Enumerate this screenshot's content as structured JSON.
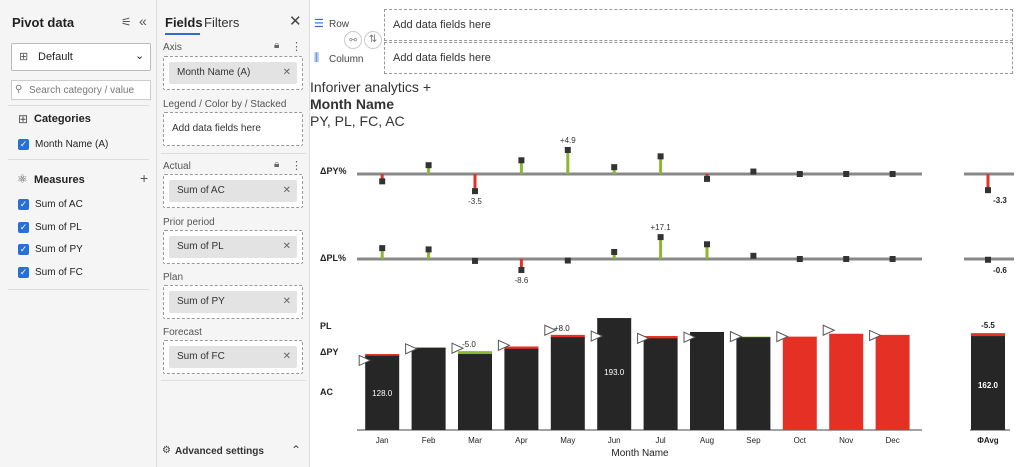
{
  "pivot": {
    "title": "Pivot data",
    "view_select": "Default",
    "search_placeholder": "Search category / value",
    "categories_title": "Categories",
    "categories": [
      "Month Name (A)"
    ],
    "measures_title": "Measures",
    "measures": [
      "Sum of AC",
      "Sum of PL",
      "Sum of PY",
      "Sum of FC"
    ]
  },
  "fields": {
    "tab_fields": "Fields",
    "tab_filters": "Filters",
    "axis_label": "Axis",
    "axis_chip": "Month Name (A)",
    "legend_label": "Legend / Color by / Stacked",
    "legend_placeholder": "Add data fields here",
    "actual_label": "Actual",
    "actual_chip": "Sum of AC",
    "prior_label": "Prior period",
    "prior_chip": "Sum of PL",
    "plan_label": "Plan",
    "plan_chip": "Sum of PY",
    "forecast_label": "Forecast",
    "forecast_chip": "Sum of FC",
    "advanced": "Advanced settings"
  },
  "toolbar": {
    "row_label": "Row",
    "row_placeholder": "Add data fields here",
    "column_label": "Column",
    "column_placeholder": "Add data fields here"
  },
  "caption": {
    "line1": "Inforiver analytics +",
    "line2": "Month Name",
    "line3": "PY, PL, FC, AC"
  },
  "chart_data": {
    "type": "bar",
    "categories": [
      "Jan",
      "Feb",
      "Mar",
      "Apr",
      "May",
      "Jun",
      "Jul",
      "Aug",
      "Sep",
      "Oct",
      "Nov",
      "Dec"
    ],
    "avg_label": "ΦAvg",
    "xlabel": "Month Name",
    "row_labels": [
      "ΔPY%",
      "ΔPL%",
      "PL",
      "ΔPY",
      "AC"
    ],
    "actual": [
      128,
      142,
      136,
      140,
      160,
      193,
      158,
      169,
      161,
      161,
      166,
      164
    ],
    "forecast_months": [
      "Oct",
      "Nov",
      "Dec"
    ],
    "prior_period": [
      131,
      142,
      131,
      144,
      164,
      193,
      162,
      169,
      160,
      158,
      159,
      160
    ],
    "plan_markers": [
      120,
      140,
      141,
      146,
      172,
      162,
      158,
      160,
      161,
      161,
      172,
      163
    ],
    "delta_py_labels": {
      "Mar": "-5.0",
      "May": "+8.0"
    },
    "inner_labels": {
      "Jan": "128.0",
      "Jun": "193.0"
    },
    "avg_value": 162,
    "avg_value_label": "162.0",
    "avg_delta_py_label": "-5.5",
    "delta_py_pct": [
      -1.5,
      1.8,
      -3.5,
      2.8,
      4.9,
      1.4,
      3.6,
      -1.0,
      0.5,
      0.0,
      0.0,
      0.0
    ],
    "delta_py_pct_labels": {
      "Mar": "-3.5",
      "May": "+4.9"
    },
    "delta_py_pct_avg": -3.3,
    "delta_pl_pct": [
      8.5,
      7.5,
      -1.5,
      -8.6,
      -1.2,
      5.5,
      17.1,
      11.5,
      2.5,
      0.0,
      0.0,
      0.0
    ],
    "delta_pl_pct_labels": {
      "Apr": "-8.6",
      "Jul": "+17.1"
    },
    "delta_pl_pct_avg": -0.6,
    "colors": {
      "actual": "#262626",
      "forecast": "#e53125",
      "positive": "#8ab833",
      "negative": "#e53125",
      "axis": "#888888"
    }
  }
}
